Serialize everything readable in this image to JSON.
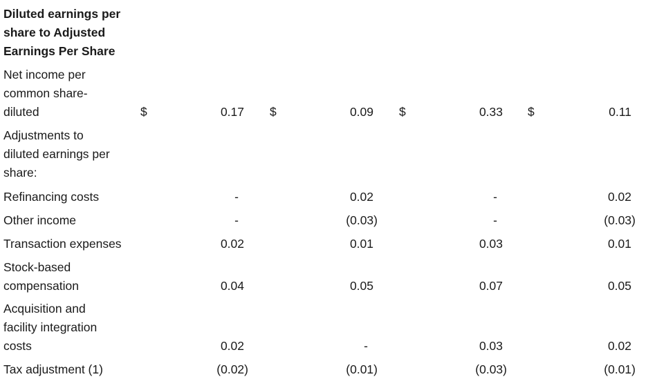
{
  "title": [
    "Diluted earnings per",
    "share to Adjusted",
    "Earnings Per Share"
  ],
  "currency_symbol": "$",
  "rows": [
    {
      "label": [
        "Net income per",
        "common share-",
        "diluted"
      ],
      "values": [
        "0.17",
        "0.09",
        "0.33",
        "0.11"
      ],
      "dollar": true
    },
    {
      "label": [
        "Adjustments to",
        "diluted earnings per",
        "share:"
      ],
      "values": []
    },
    {
      "label": [
        "Refinancing costs"
      ],
      "values": [
        "-",
        "0.02",
        "-",
        "0.02"
      ]
    },
    {
      "label": [
        "Other income"
      ],
      "values": [
        "-",
        "(0.03)",
        "-",
        "(0.03)"
      ]
    },
    {
      "label": [
        "Transaction expenses"
      ],
      "values": [
        "0.02",
        "0.01",
        "0.03",
        "0.01"
      ]
    },
    {
      "label": [
        "Stock-based",
        "compensation"
      ],
      "values": [
        "0.04",
        "0.05",
        "0.07",
        "0.05"
      ]
    },
    {
      "label": [
        "Acquisition and",
        "facility integration",
        "costs"
      ],
      "values": [
        "0.02",
        "-",
        "0.03",
        "0.02"
      ]
    },
    {
      "label": [
        "Tax adjustment (1)"
      ],
      "values": [
        "(0.02)",
        "(0.01)",
        "(0.03)",
        "(0.01)"
      ]
    }
  ]
}
